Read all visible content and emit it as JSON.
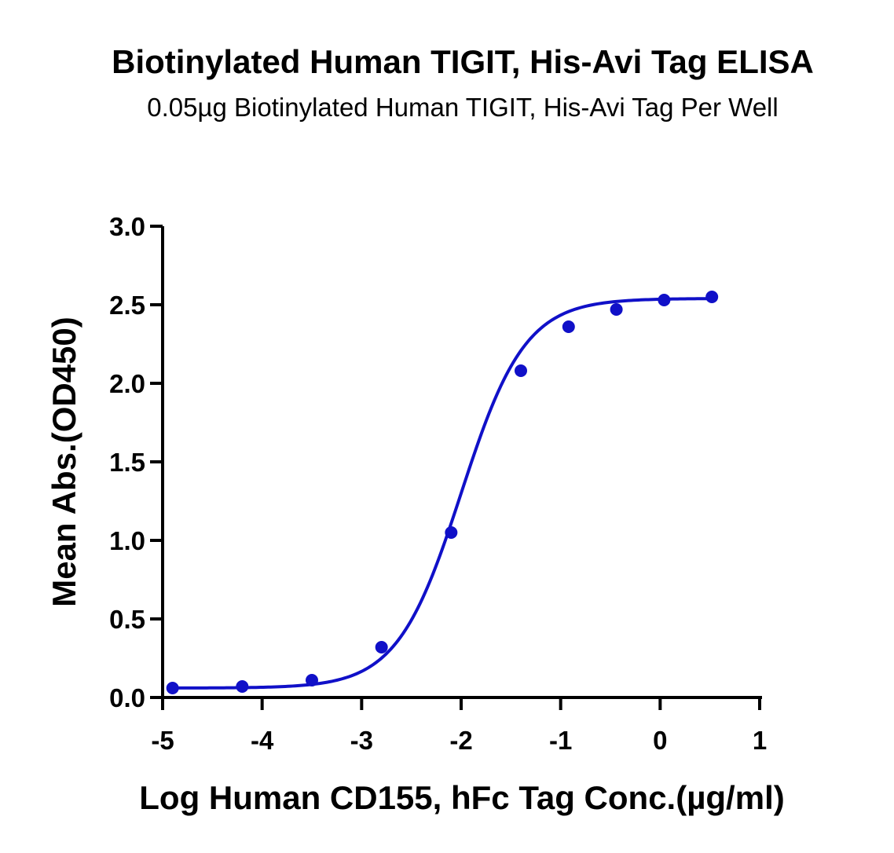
{
  "colors": {
    "series": "#1010c8",
    "axis": "#000000",
    "background": "#ffffff"
  },
  "chart_data": {
    "type": "scatter",
    "title": "Biotinylated Human TIGIT, His-Avi Tag ELISA",
    "subtitle": "0.05µg Biotinylated Human TIGIT, His-Avi Tag Per Well",
    "xlabel": "Log Human CD155, hFc Tag Conc.(µg/ml)",
    "ylabel": "Mean Abs.(OD450)",
    "xlim": [
      -5,
      1
    ],
    "ylim": [
      0,
      3
    ],
    "x_ticks": [
      -5,
      -4,
      -3,
      -2,
      -1,
      0,
      1
    ],
    "x_tick_labels": [
      "-5",
      "-4",
      "-3",
      "-2",
      "-1",
      "0",
      "1"
    ],
    "y_ticks": [
      0,
      0.5,
      1,
      1.5,
      2,
      2.5,
      3
    ],
    "y_tick_labels": [
      "0.0",
      "0.5",
      "1.0",
      "1.5",
      "2.0",
      "2.5",
      "3.0"
    ],
    "grid": false,
    "legend": "none",
    "series": [
      {
        "x": [
          -4.9,
          -4.2,
          -3.5,
          -2.8,
          -2.1,
          -1.4,
          -0.92,
          -0.44,
          0.04,
          0.52
        ],
        "y": [
          0.06,
          0.07,
          0.11,
          0.32,
          1.05,
          2.08,
          2.36,
          2.47,
          2.53,
          2.55
        ],
        "fit_curve": true
      }
    ]
  }
}
